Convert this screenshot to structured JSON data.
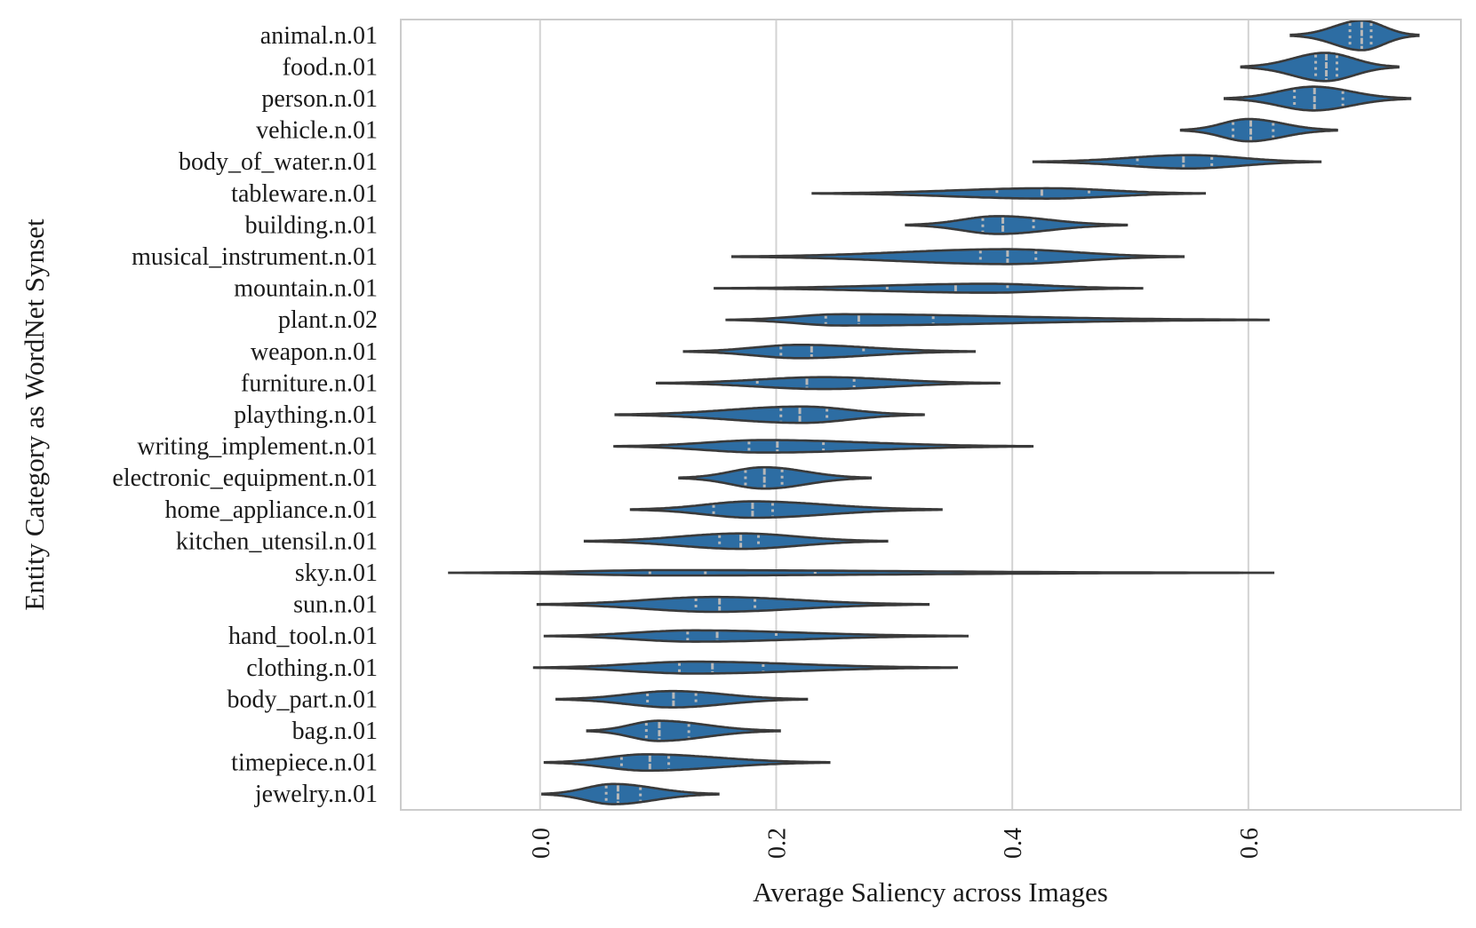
{
  "chart_data": {
    "type": "violin",
    "orientation": "horizontal",
    "title": "",
    "xlabel": "Average Saliency across Images",
    "ylabel": "Entity Category as WordNet Synset",
    "xlim": [
      -0.118,
      0.78
    ],
    "xticks": [
      0.0,
      0.2,
      0.4,
      0.6
    ],
    "xtick_labels": [
      "0.0",
      "0.2",
      "0.4",
      "0.6"
    ],
    "xtick_rotation": -90,
    "grid": "vertical",
    "inner": "quartile",
    "colors": {
      "fill": "#2d6da3",
      "edge": "#3a3a3a",
      "quartile": "#b8b8b8",
      "grid": "#d3d3d3",
      "frame": "#cccccc"
    },
    "categories": [
      "animal.n.01",
      "food.n.01",
      "person.n.01",
      "vehicle.n.01",
      "body_of_water.n.01",
      "tableware.n.01",
      "building.n.01",
      "musical_instrument.n.01",
      "mountain.n.01",
      "plant.n.02",
      "weapon.n.01",
      "furniture.n.01",
      "plaything.n.01",
      "writing_implement.n.01",
      "electronic_equipment.n.01",
      "home_appliance.n.01",
      "kitchen_utensil.n.01",
      "sky.n.01",
      "sun.n.01",
      "hand_tool.n.01",
      "clothing.n.01",
      "body_part.n.01",
      "bag.n.01",
      "timepiece.n.01",
      "jewelry.n.01"
    ],
    "series": [
      {
        "category": "animal.n.01",
        "min": 0.636,
        "max": 0.744,
        "q1": 0.686,
        "median": 0.696,
        "q3": 0.704,
        "peak": 0.696,
        "width": 1.0
      },
      {
        "category": "food.n.01",
        "min": 0.594,
        "max": 0.727,
        "q1": 0.657,
        "median": 0.666,
        "q3": 0.675,
        "peak": 0.665,
        "width": 0.95
      },
      {
        "category": "person.n.01",
        "min": 0.58,
        "max": 0.737,
        "q1": 0.639,
        "median": 0.656,
        "q3": 0.68,
        "peak": 0.655,
        "width": 0.8
      },
      {
        "category": "vehicle.n.01",
        "min": 0.543,
        "max": 0.675,
        "q1": 0.587,
        "median": 0.602,
        "q3": 0.621,
        "peak": 0.6,
        "width": 0.75
      },
      {
        "category": "body_of_water.n.01",
        "min": 0.418,
        "max": 0.661,
        "q1": 0.506,
        "median": 0.545,
        "q3": 0.569,
        "peak": 0.55,
        "width": 0.45
      },
      {
        "category": "tableware.n.01",
        "min": 0.231,
        "max": 0.563,
        "q1": 0.387,
        "median": 0.425,
        "q3": 0.465,
        "peak": 0.43,
        "width": 0.35
      },
      {
        "category": "building.n.01",
        "min": 0.31,
        "max": 0.497,
        "q1": 0.375,
        "median": 0.392,
        "q3": 0.418,
        "peak": 0.388,
        "width": 0.6
      },
      {
        "category": "musical_instrument.n.01",
        "min": 0.163,
        "max": 0.545,
        "q1": 0.373,
        "median": 0.396,
        "q3": 0.42,
        "peak": 0.395,
        "width": 0.5
      },
      {
        "category": "mountain.n.01",
        "min": 0.148,
        "max": 0.51,
        "q1": 0.294,
        "median": 0.352,
        "q3": 0.396,
        "peak": 0.38,
        "width": 0.3
      },
      {
        "category": "plant.n.02",
        "min": 0.158,
        "max": 0.617,
        "q1": 0.242,
        "median": 0.27,
        "q3": 0.333,
        "peak": 0.255,
        "width": 0.38
      },
      {
        "category": "weapon.n.01",
        "min": 0.122,
        "max": 0.368,
        "q1": 0.204,
        "median": 0.23,
        "q3": 0.274,
        "peak": 0.22,
        "width": 0.45
      },
      {
        "category": "furniture.n.01",
        "min": 0.099,
        "max": 0.389,
        "q1": 0.184,
        "median": 0.226,
        "q3": 0.266,
        "peak": 0.24,
        "width": 0.4
      },
      {
        "category": "plaything.n.01",
        "min": 0.064,
        "max": 0.325,
        "q1": 0.204,
        "median": 0.22,
        "q3": 0.243,
        "peak": 0.222,
        "width": 0.55
      },
      {
        "category": "writing_implement.n.01",
        "min": 0.063,
        "max": 0.417,
        "q1": 0.177,
        "median": 0.201,
        "q3": 0.24,
        "peak": 0.19,
        "width": 0.42
      },
      {
        "category": "electronic_equipment.n.01",
        "min": 0.118,
        "max": 0.28,
        "q1": 0.174,
        "median": 0.19,
        "q3": 0.205,
        "peak": 0.19,
        "width": 0.72
      },
      {
        "category": "home_appliance.n.01",
        "min": 0.077,
        "max": 0.34,
        "q1": 0.147,
        "median": 0.18,
        "q3": 0.197,
        "peak": 0.18,
        "width": 0.55
      },
      {
        "category": "kitchen_utensil.n.01",
        "min": 0.038,
        "max": 0.294,
        "q1": 0.152,
        "median": 0.17,
        "q3": 0.185,
        "peak": 0.17,
        "width": 0.52
      },
      {
        "category": "sky.n.01",
        "min": -0.077,
        "max": 0.621,
        "q1": 0.093,
        "median": 0.14,
        "q3": 0.233,
        "peak": 0.11,
        "width": 0.18
      },
      {
        "category": "sun.n.01",
        "min": -0.002,
        "max": 0.329,
        "q1": 0.132,
        "median": 0.152,
        "q3": 0.182,
        "peak": 0.148,
        "width": 0.5
      },
      {
        "category": "hand_tool.n.01",
        "min": 0.004,
        "max": 0.362,
        "q1": 0.125,
        "median": 0.15,
        "q3": 0.2,
        "peak": 0.13,
        "width": 0.38
      },
      {
        "category": "clothing.n.01",
        "min": -0.005,
        "max": 0.353,
        "q1": 0.118,
        "median": 0.146,
        "q3": 0.189,
        "peak": 0.13,
        "width": 0.4
      },
      {
        "category": "body_part.n.01",
        "min": 0.014,
        "max": 0.226,
        "q1": 0.091,
        "median": 0.113,
        "q3": 0.132,
        "peak": 0.112,
        "width": 0.55
      },
      {
        "category": "bag.n.01",
        "min": 0.04,
        "max": 0.203,
        "q1": 0.09,
        "median": 0.101,
        "q3": 0.126,
        "peak": 0.1,
        "width": 0.68
      },
      {
        "category": "timepiece.n.01",
        "min": 0.004,
        "max": 0.245,
        "q1": 0.069,
        "median": 0.093,
        "q3": 0.109,
        "peak": 0.09,
        "width": 0.55
      },
      {
        "category": "jewelry.n.01",
        "min": 0.002,
        "max": 0.151,
        "q1": 0.056,
        "median": 0.066,
        "q3": 0.085,
        "peak": 0.062,
        "width": 0.68
      }
    ]
  }
}
